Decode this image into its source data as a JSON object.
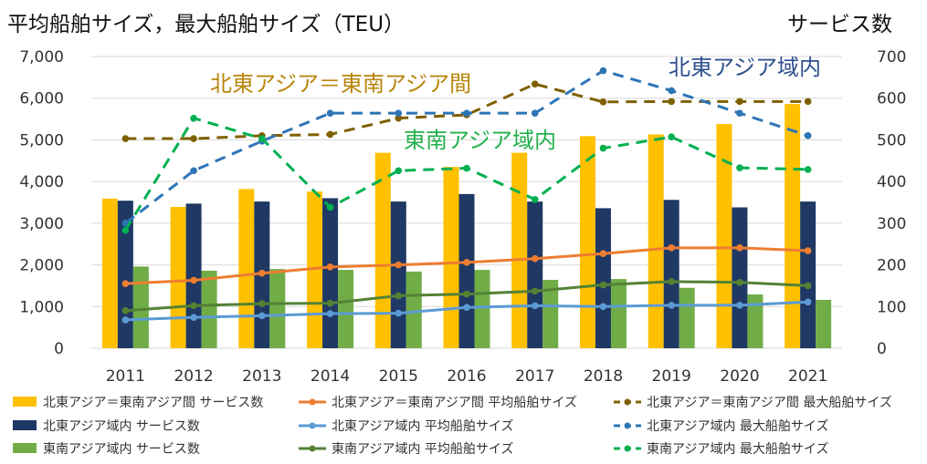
{
  "chart_data": {
    "type": "bar+line",
    "title": "平均船舶サイズ，最大船舶サイズ（TEU）",
    "right_title": "サービス数",
    "categories": [
      "2011",
      "2012",
      "2013",
      "2014",
      "2015",
      "2016",
      "2017",
      "2018",
      "2019",
      "2020",
      "2021"
    ],
    "ylim_left": [
      0,
      7000
    ],
    "ylim_right": [
      0,
      700
    ],
    "yticks_left": [
      "0",
      "1,000",
      "2,000",
      "3,000",
      "4,000",
      "5,000",
      "6,000",
      "7,000"
    ],
    "yticks_right": [
      "0",
      "100",
      "200",
      "300",
      "400",
      "500",
      "600",
      "700"
    ],
    "grid": true,
    "legend_position": "bottom",
    "annotations": [
      {
        "text": "北東アジア＝東南アジア間",
        "color": "#b8860b"
      },
      {
        "text": "北東アジア域内",
        "color": "#2f4f8f"
      },
      {
        "text": "東南アジア域内",
        "color": "#22b14c"
      }
    ],
    "bar_series": [
      {
        "name": "北東アジア＝東南アジア間 サービス数",
        "color": "#ffc000",
        "values": [
          359,
          339,
          382,
          376,
          469,
          435,
          469,
          509,
          513,
          538,
          586
        ]
      },
      {
        "name": "北東アジア域内 サービス数",
        "color": "#1f3864",
        "values": [
          354,
          347,
          352,
          360,
          352,
          370,
          352,
          336,
          356,
          338,
          352
        ]
      },
      {
        "name": "東南アジア域内 サービス数",
        "color": "#70ad47",
        "values": [
          196,
          186,
          190,
          188,
          184,
          188,
          164,
          166,
          145,
          129,
          116
        ]
      }
    ],
    "line_series": [
      {
        "name": "北東アジア＝東南アジア間 平均船舶サイズ",
        "color": "#ed7d31",
        "dash": "solid",
        "values": [
          1550,
          1630,
          1800,
          1950,
          2000,
          2060,
          2150,
          2270,
          2410,
          2410,
          2340
        ]
      },
      {
        "name": "北東アジア域内 平均船舶サイズ",
        "color": "#5b9bd5",
        "dash": "solid",
        "values": [
          680,
          740,
          780,
          830,
          840,
          980,
          1020,
          1000,
          1030,
          1030,
          1110
        ]
      },
      {
        "name": "東南アジア域内 平均船舶サイズ",
        "color": "#548235",
        "dash": "solid",
        "values": [
          900,
          1020,
          1070,
          1080,
          1260,
          1300,
          1370,
          1520,
          1600,
          1580,
          1500
        ]
      },
      {
        "name": "北東アジア＝東南アジア間 最大船舶サイズ",
        "color": "#7f6000",
        "dash": "dashed",
        "values": [
          5030,
          5030,
          5100,
          5130,
          5520,
          5600,
          6340,
          5910,
          5920,
          5920,
          5920
        ]
      },
      {
        "name": "北東アジア域内 最大船舶サイズ",
        "color": "#2e75b6",
        "dash": "dashed",
        "values": [
          3000,
          4260,
          4970,
          5640,
          5640,
          5640,
          5640,
          6660,
          6180,
          5640,
          5100
        ]
      },
      {
        "name": "東南アジア域内 最大船舶サイズ",
        "color": "#00b050",
        "dash": "dashed",
        "values": [
          2830,
          5520,
          5030,
          3380,
          4260,
          4320,
          3570,
          4800,
          5070,
          4330,
          4290
        ]
      }
    ]
  }
}
